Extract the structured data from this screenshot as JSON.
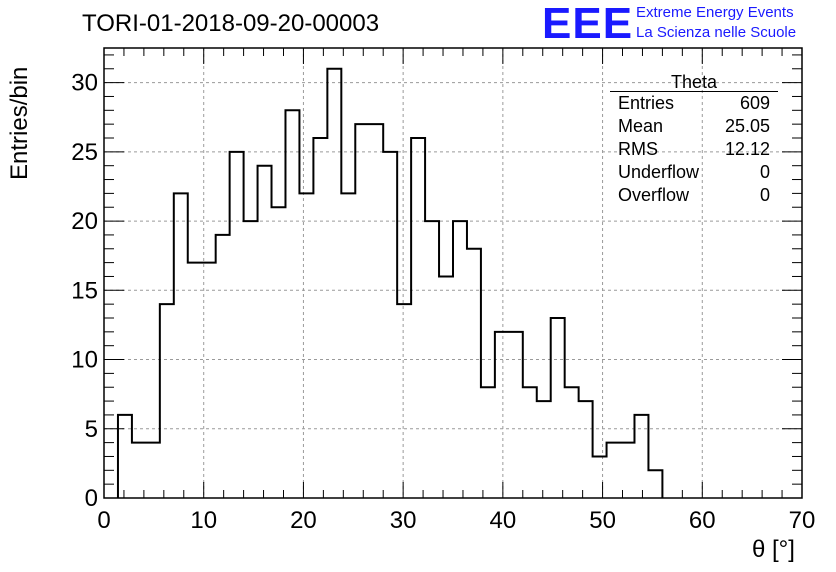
{
  "header": {
    "title": "TORI-01-2018-09-20-00003",
    "logo_text": "EEE",
    "logo_line1": "Extreme Energy Events",
    "logo_line2": "La Scienza nelle Scuole"
  },
  "stats": {
    "title": "Theta",
    "rows": [
      {
        "label": "Entries",
        "value": "609"
      },
      {
        "label": "Mean",
        "value": "25.05"
      },
      {
        "label": "RMS",
        "value": "12.12"
      },
      {
        "label": "Underflow",
        "value": "0"
      },
      {
        "label": "Overflow",
        "value": "0"
      }
    ]
  },
  "chart_data": {
    "type": "bar",
    "style": "step-histogram",
    "title": "TORI-01-2018-09-20-00003",
    "xlabel": "θ [°]",
    "ylabel": "Entries/bin",
    "xlim": [
      0,
      70
    ],
    "ylim": [
      0,
      32.5
    ],
    "xticks": [
      0,
      10,
      20,
      30,
      40,
      50,
      60,
      70
    ],
    "yticks": [
      0,
      5,
      10,
      15,
      20,
      25,
      30
    ],
    "grid": true,
    "bin_width": 1.4,
    "bin_edges_start": 1.4,
    "values": [
      6,
      4,
      4,
      14,
      22,
      17,
      17,
      19,
      25,
      20,
      24,
      21,
      28,
      22,
      26,
      31,
      22,
      27,
      27,
      25,
      14,
      26,
      20,
      16,
      20,
      18,
      8,
      12,
      12,
      8,
      7,
      13,
      8,
      7,
      3,
      4,
      4,
      6,
      2
    ],
    "legend": "stats box top-right"
  }
}
